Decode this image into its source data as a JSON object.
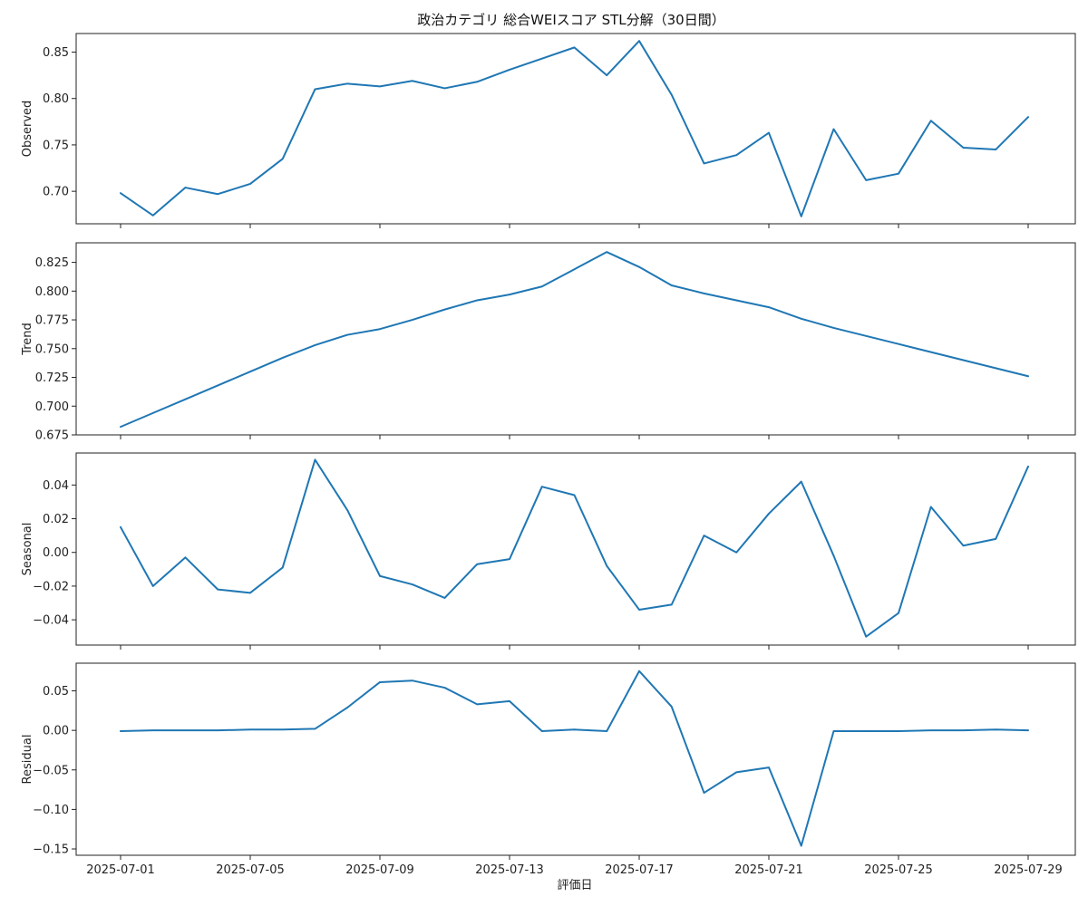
{
  "chart_data": {
    "type": "line",
    "title": "政治カテゴリ 総合WEIスコア STL分解（30日間）",
    "xlabel": "評価日",
    "color": "#1f77b4",
    "x": [
      "2025-07-01",
      "2025-07-02",
      "2025-07-03",
      "2025-07-04",
      "2025-07-05",
      "2025-07-06",
      "2025-07-07",
      "2025-07-08",
      "2025-07-09",
      "2025-07-10",
      "2025-07-11",
      "2025-07-12",
      "2025-07-13",
      "2025-07-14",
      "2025-07-15",
      "2025-07-16",
      "2025-07-17",
      "2025-07-18",
      "2025-07-19",
      "2025-07-20",
      "2025-07-21",
      "2025-07-22",
      "2025-07-23",
      "2025-07-24",
      "2025-07-25",
      "2025-07-26",
      "2025-07-27",
      "2025-07-28",
      "2025-07-29"
    ],
    "x_ticks": [
      "2025-07-01",
      "2025-07-05",
      "2025-07-09",
      "2025-07-13",
      "2025-07-17",
      "2025-07-21",
      "2025-07-25",
      "2025-07-29"
    ],
    "panels": [
      {
        "ylabel": "Observed",
        "ylim": [
          0.665,
          0.87
        ],
        "yticks": [
          0.7,
          0.75,
          0.8,
          0.85
        ],
        "ytick_labels": [
          "0.70",
          "0.75",
          "0.80",
          "0.85"
        ],
        "values": [
          0.698,
          0.674,
          0.704,
          0.697,
          0.708,
          0.735,
          0.81,
          0.816,
          0.813,
          0.819,
          0.811,
          0.818,
          0.831,
          0.843,
          0.855,
          0.825,
          0.862,
          0.804,
          0.73,
          0.739,
          0.763,
          0.673,
          0.767,
          0.712,
          0.719,
          0.776,
          0.747,
          0.745,
          0.78
        ]
      },
      {
        "ylabel": "Trend",
        "ylim": [
          0.675,
          0.842
        ],
        "yticks": [
          0.675,
          0.7,
          0.725,
          0.75,
          0.775,
          0.8,
          0.825
        ],
        "ytick_labels": [
          "0.675",
          "0.700",
          "0.725",
          "0.750",
          "0.775",
          "0.800",
          "0.825"
        ],
        "values": [
          0.682,
          0.694,
          0.706,
          0.718,
          0.73,
          0.742,
          0.753,
          0.762,
          0.767,
          0.775,
          0.784,
          0.792,
          0.797,
          0.804,
          0.819,
          0.834,
          0.821,
          0.805,
          0.798,
          0.792,
          0.786,
          0.776,
          0.768,
          0.761,
          0.754,
          0.747,
          0.74,
          0.733,
          0.726
        ]
      },
      {
        "ylabel": "Seasonal",
        "ylim": [
          -0.055,
          0.059
        ],
        "yticks": [
          -0.04,
          -0.02,
          0.0,
          0.02,
          0.04
        ],
        "ytick_labels": [
          "−0.04",
          "−0.02",
          "0.00",
          "0.02",
          "0.04"
        ],
        "values": [
          0.015,
          -0.02,
          -0.003,
          -0.022,
          -0.024,
          -0.009,
          0.055,
          0.025,
          -0.014,
          -0.019,
          -0.027,
          -0.007,
          -0.004,
          0.039,
          0.034,
          -0.008,
          -0.034,
          -0.031,
          0.01,
          -0.0,
          0.023,
          0.042,
          -0.002,
          -0.05,
          -0.036,
          0.027,
          0.004,
          0.008,
          0.051
        ]
      },
      {
        "ylabel": "Residual",
        "ylim": [
          -0.158,
          0.085
        ],
        "yticks": [
          -0.15,
          -0.1,
          -0.05,
          0.0,
          0.05
        ],
        "ytick_labels": [
          "−0.15",
          "−0.10",
          "−0.05",
          "0.00",
          "0.05"
        ],
        "values": [
          -0.001,
          0.0,
          0.0,
          0.0,
          0.001,
          0.001,
          0.002,
          0.029,
          0.061,
          0.063,
          0.054,
          0.033,
          0.037,
          -0.001,
          0.001,
          -0.001,
          0.075,
          0.03,
          -0.079,
          -0.053,
          -0.047,
          -0.146,
          -0.001,
          -0.001,
          -0.001,
          0.0,
          0.0,
          0.001,
          0.0
        ]
      }
    ]
  }
}
